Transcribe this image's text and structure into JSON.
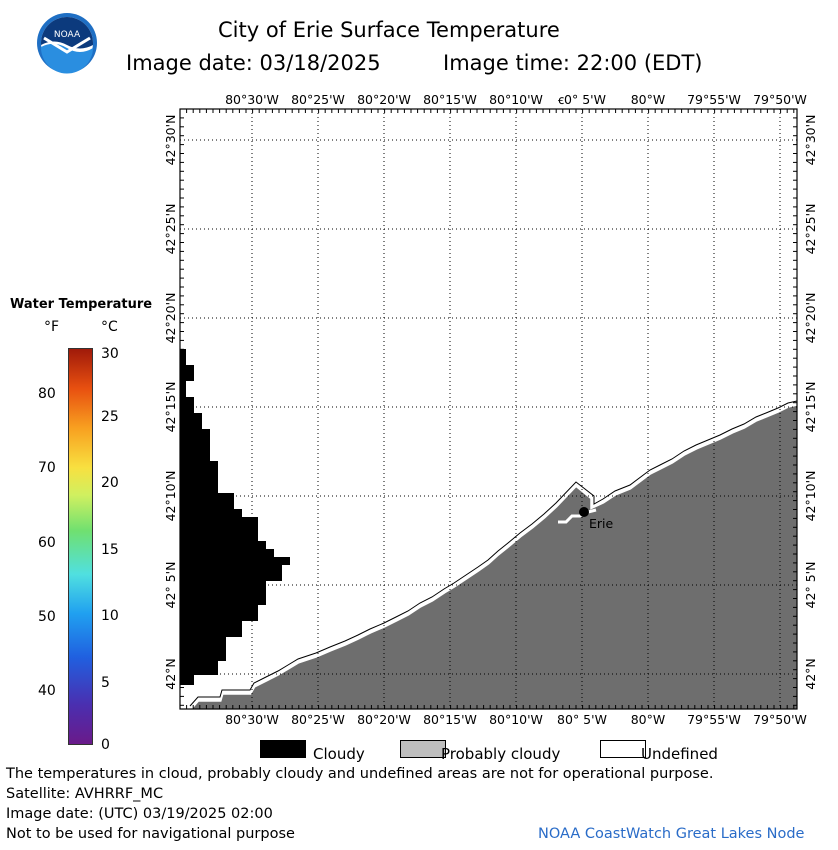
{
  "header": {
    "title": "City of Erie Surface Temperature",
    "image_date": "Image date: 03/18/2025",
    "image_time": "Image time: 22:00 (EDT)"
  },
  "logo": {
    "text": "NOAA"
  },
  "colorbar": {
    "title": "Water Temperature",
    "unit_f": "°F",
    "unit_c": "°C",
    "f_ticks": [
      "80",
      "70",
      "60",
      "50",
      "40"
    ],
    "c_ticks": [
      "30",
      "25",
      "20",
      "15",
      "10",
      "5",
      "0"
    ]
  },
  "map": {
    "lon_labels_top": [
      "80°30'W",
      "80°25'W",
      "80°20'W",
      "80°15'W",
      "80°10'W",
      "ꞓ0° 5'W",
      "80°W",
      "79°55'W",
      "79°50'W"
    ],
    "lon_labels_bottom": [
      "80°30'W",
      "80°25'W",
      "80°20'W",
      "80°15'W",
      "80°10'W",
      "80° 5'W",
      "80°W",
      "79°55'W",
      "79°50'W"
    ],
    "lat_labels": [
      "42°30'N",
      "42°25'N",
      "42°20'N",
      "42°15'N",
      "42°10'N",
      "42° 5'N",
      "42°N"
    ],
    "city_label": "Erie",
    "colors": {
      "land_cloud": "#6e6e6e",
      "cloudy": "#000000",
      "probably_cloudy": "#bebebe",
      "undefined": "#ffffff"
    }
  },
  "legend": {
    "cloudy": "Cloudy",
    "probably_cloudy": "Probably cloudy",
    "undefined": "Undefined"
  },
  "footer": {
    "line1": "The temperatures in cloud, probably cloudy and undefined areas are not for operational purpose.",
    "line2": "Satellite: AVHRRF_MC",
    "line3": "Image date: (UTC) 03/19/2025  02:00",
    "line4": "Not to be used for navigational purpose",
    "credit": "NOAA CoastWatch Great Lakes Node"
  }
}
